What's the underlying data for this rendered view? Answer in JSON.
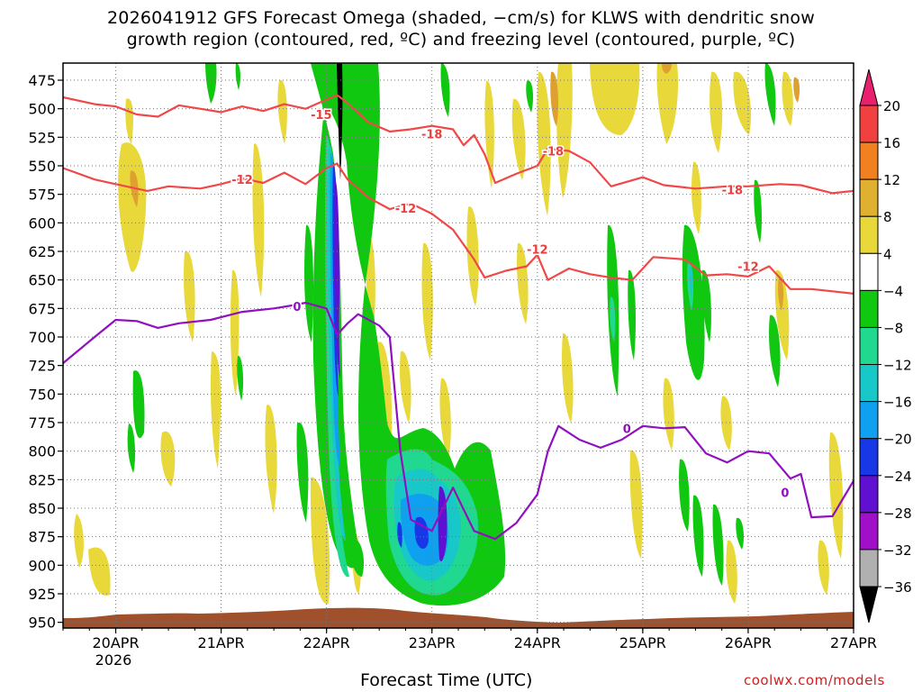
{
  "chart_data": {
    "type": "heatmap",
    "title": "2026041912 GFS Forecast Omega (shaded, −cm/s) for KLWS with dendritic snow",
    "subtitle": "growth region (contoured, red, ºC) and freezing level (contoured, purple, ºC)",
    "xlabel": "Forecast Time (UTC)",
    "credit": "coolwx.com/models",
    "x_ticks": [
      "20APR",
      "21APR",
      "22APR",
      "23APR",
      "24APR",
      "25APR",
      "26APR",
      "27APR"
    ],
    "x_year": "2026",
    "xlim_days": [
      19.5,
      27.0
    ],
    "ylim_hpa": [
      955,
      460
    ],
    "y_ticks": [
      475,
      500,
      525,
      550,
      575,
      600,
      625,
      650,
      675,
      700,
      725,
      750,
      775,
      800,
      825,
      850,
      875,
      900,
      925,
      950
    ],
    "grid": true,
    "colorbar": {
      "levels": [
        20,
        16,
        12,
        8,
        4,
        -4,
        -8,
        -12,
        -16,
        -20,
        -24,
        -28,
        -32,
        -36
      ],
      "colors": [
        "#e8206e",
        "#f04040",
        "#f08020",
        "#e0b030",
        "#e8d83a",
        "#ffffff",
        "#10c810",
        "#20d890",
        "#18c8c8",
        "#10a0f0",
        "#1838e8",
        "#6010d0",
        "#a010c8",
        "#b0b0b0",
        "#000000"
      ]
    },
    "contour_labels": [
      {
        "text": "-15",
        "x_day": 21.95,
        "p": 505,
        "color": "#e84040"
      },
      {
        "text": "-18",
        "x_day": 23.0,
        "p": 522,
        "color": "#e84040"
      },
      {
        "text": "-18",
        "x_day": 24.15,
        "p": 537,
        "color": "#e84040"
      },
      {
        "text": "-18",
        "x_day": 25.85,
        "p": 571,
        "color": "#e84040"
      },
      {
        "text": "-12",
        "x_day": 21.2,
        "p": 562,
        "color": "#e84040"
      },
      {
        "text": "-12",
        "x_day": 22.75,
        "p": 587,
        "color": "#e84040"
      },
      {
        "text": "-12",
        "x_day": 24.0,
        "p": 623,
        "color": "#e84040"
      },
      {
        "text": "-12",
        "x_day": 26.0,
        "p": 638,
        "color": "#e84040"
      },
      {
        "text": "0",
        "x_day": 21.72,
        "p": 673,
        "color": "#9010c0"
      },
      {
        "text": "0",
        "x_day": 24.85,
        "p": 780,
        "color": "#9010c0"
      },
      {
        "text": "0",
        "x_day": 26.35,
        "p": 836,
        "color": "#9010c0"
      }
    ],
    "series": [
      {
        "name": "-18",
        "color": "#f04848",
        "style": "contour",
        "x": [
          19.5,
          19.8,
          20.0,
          20.2,
          20.4,
          20.6,
          20.8,
          21.0,
          21.2,
          21.4,
          21.6,
          21.8,
          22.0,
          22.1,
          22.2,
          22.4,
          22.6,
          22.8,
          23.0,
          23.2,
          23.3,
          23.4,
          23.5,
          23.6,
          23.8,
          24.0,
          24.1,
          24.3,
          24.5,
          24.7,
          25.0,
          25.2,
          25.5,
          25.8,
          26.0,
          26.3,
          26.5,
          26.8,
          27.0
        ],
        "y": [
          490,
          496,
          498,
          505,
          507,
          497,
          500,
          503,
          498,
          502,
          496,
          500,
          492,
          488,
          495,
          512,
          520,
          518,
          515,
          518,
          532,
          523,
          540,
          565,
          557,
          550,
          535,
          537,
          547,
          568,
          560,
          567,
          570,
          568,
          568,
          566,
          567,
          574,
          572
        ]
      },
      {
        "name": "-12",
        "color": "#f04848",
        "style": "contour",
        "x": [
          19.5,
          19.8,
          20.0,
          20.3,
          20.5,
          20.8,
          21.0,
          21.2,
          21.4,
          21.6,
          21.8,
          22.0,
          22.1,
          22.2,
          22.4,
          22.6,
          22.8,
          23.0,
          23.2,
          23.4,
          23.5,
          23.7,
          23.9,
          24.0,
          24.1,
          24.3,
          24.5,
          24.7,
          24.9,
          25.1,
          25.4,
          25.6,
          25.8,
          26.0,
          26.2,
          26.4,
          26.6,
          26.8,
          27.0
        ],
        "y": [
          552,
          562,
          566,
          572,
          568,
          570,
          566,
          561,
          565,
          556,
          566,
          552,
          548,
          562,
          578,
          588,
          583,
          592,
          606,
          632,
          648,
          642,
          638,
          628,
          650,
          640,
          645,
          648,
          650,
          630,
          632,
          646,
          645,
          647,
          638,
          658,
          658,
          660,
          662
        ]
      },
      {
        "name": "0",
        "color": "#9010c0",
        "style": "contour",
        "x": [
          19.5,
          19.8,
          20.0,
          20.2,
          20.4,
          20.6,
          20.9,
          21.2,
          21.5,
          21.7,
          21.8,
          22.0,
          22.1,
          22.2,
          22.3,
          22.5,
          22.6,
          22.7,
          22.8,
          23.0,
          23.2,
          23.4,
          23.6,
          23.8,
          24.0,
          24.1,
          24.2,
          24.4,
          24.6,
          24.8,
          25.0,
          25.2,
          25.4,
          25.6,
          25.8,
          26.0,
          26.2,
          26.4,
          26.5,
          26.6,
          26.8,
          27.0
        ],
        "y": [
          723,
          700,
          685,
          686,
          692,
          688,
          685,
          678,
          675,
          672,
          670,
          675,
          698,
          688,
          680,
          690,
          700,
          800,
          860,
          870,
          832,
          870,
          877,
          863,
          838,
          800,
          778,
          790,
          797,
          790,
          778,
          780,
          779,
          802,
          810,
          800,
          802,
          824,
          820,
          858,
          857,
          826
        ]
      }
    ]
  }
}
